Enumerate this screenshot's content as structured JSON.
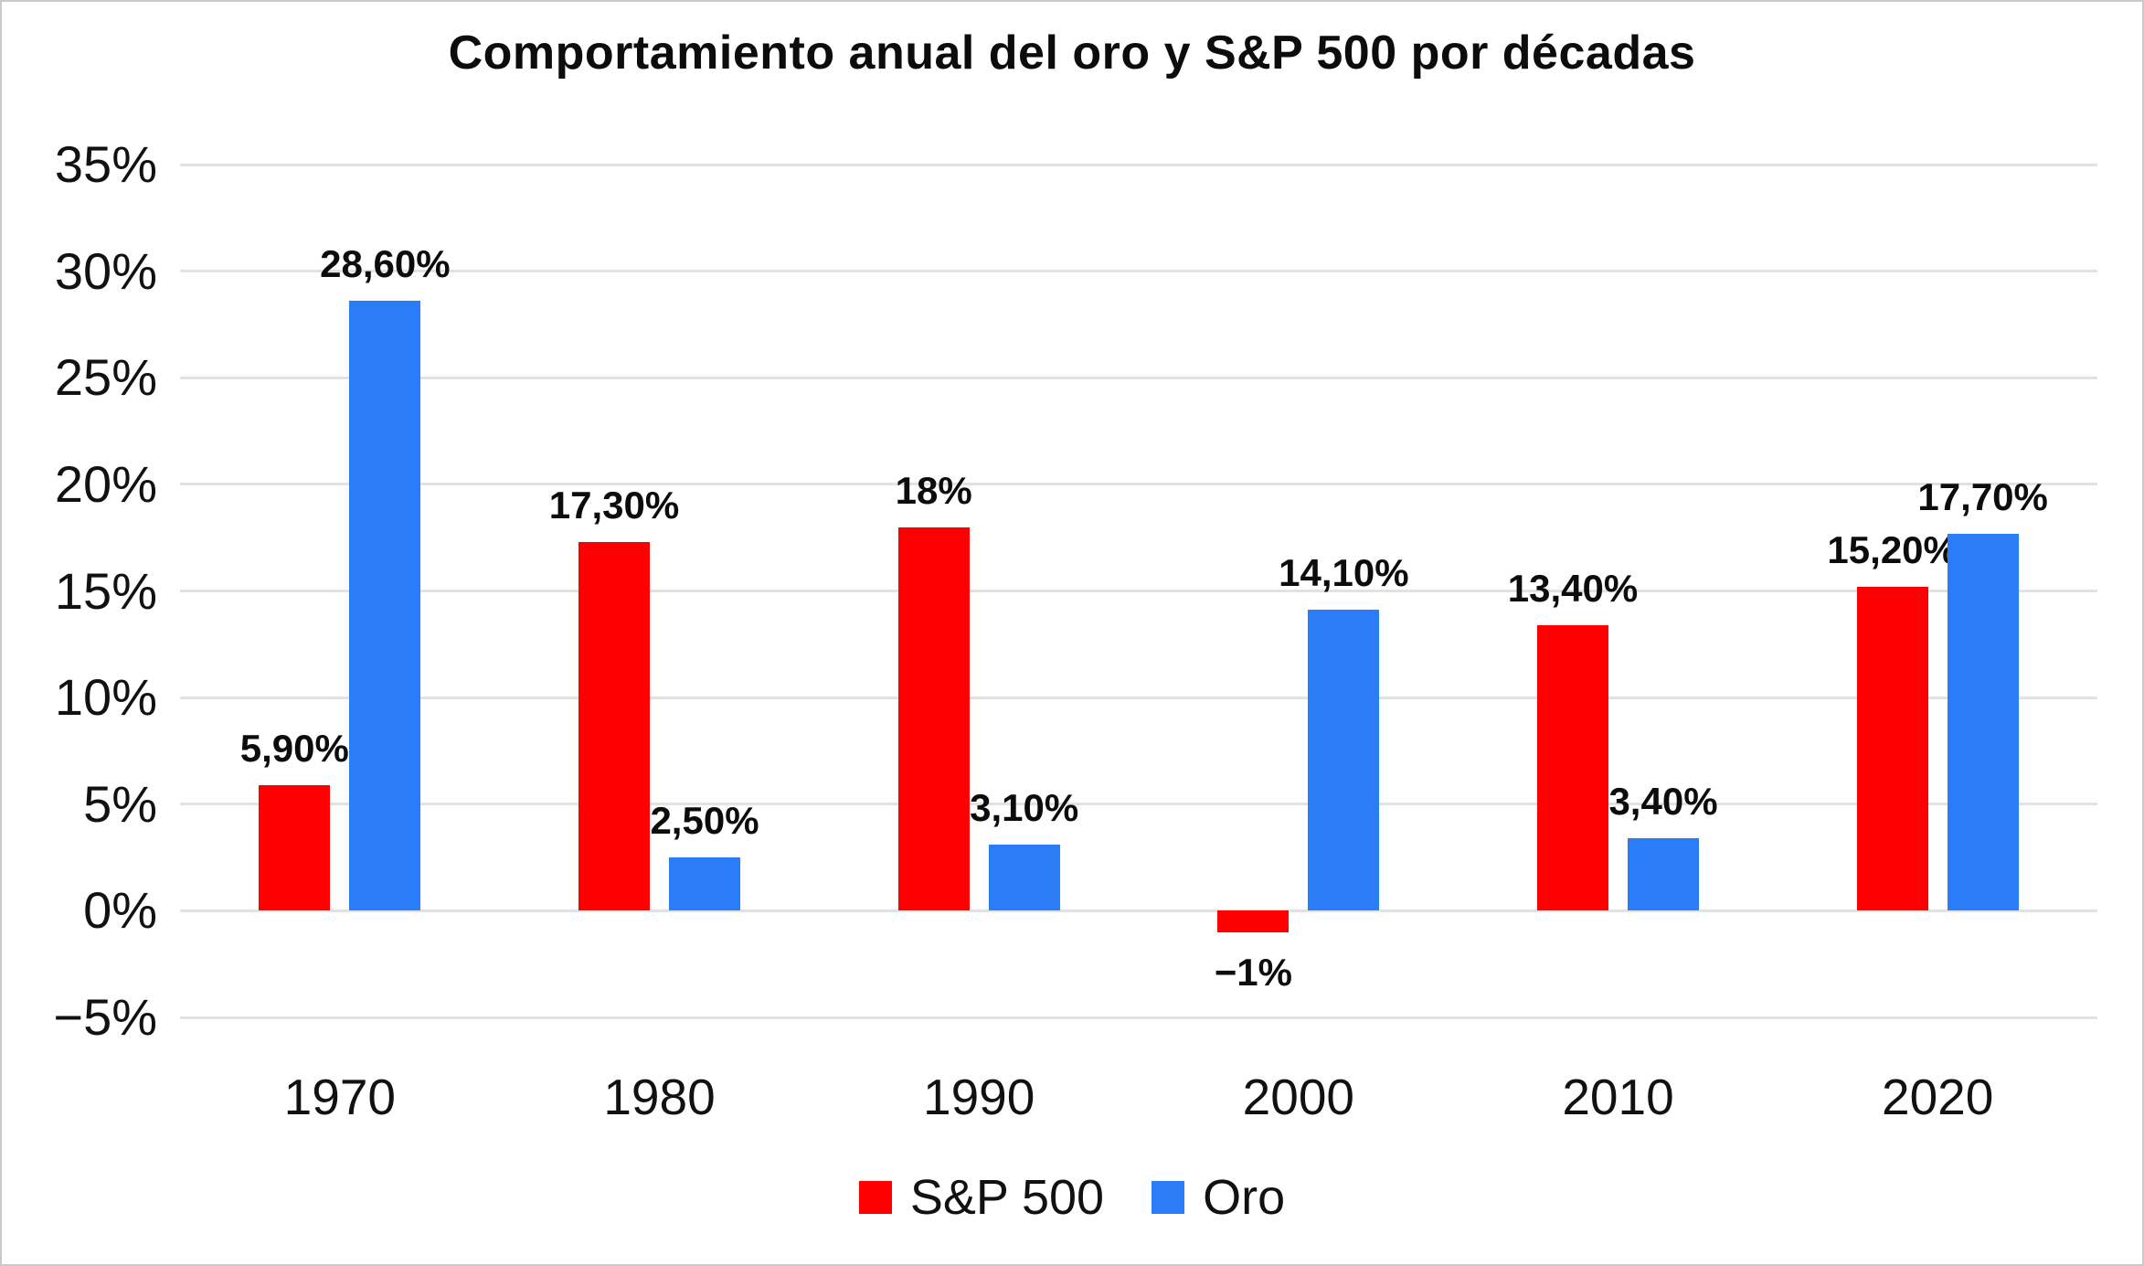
{
  "title": "Comportamiento anual del oro y S&P 500 por décadas",
  "colors": {
    "sp500": "#fe0000",
    "oro": "#2b7cf7",
    "gridline": "#e2e2e2",
    "text": "#111111",
    "frame_border": "#c9c9c9",
    "background": "#ffffff"
  },
  "chart_data": {
    "type": "bar",
    "title": "Comportamiento anual del oro y S&P 500 por décadas",
    "categories": [
      "1970",
      "1980",
      "1990",
      "2000",
      "2010",
      "2020"
    ],
    "series": [
      {
        "name": "S&P 500",
        "color": "#fe0000",
        "values": [
          5.9,
          17.3,
          18,
          -1,
          13.4,
          15.2
        ],
        "labels": [
          "5,90%",
          "17,30%",
          "18%",
          "−1%",
          "13,40%",
          "15,20%"
        ]
      },
      {
        "name": "Oro",
        "color": "#2b7cf7",
        "values": [
          28.6,
          2.5,
          3.1,
          14.1,
          3.4,
          17.7
        ],
        "labels": [
          "28,60%",
          "2,50%",
          "3,10%",
          "14,10%",
          "3,40%",
          "17,70%"
        ]
      }
    ],
    "xlabel": "",
    "ylabel": "",
    "ylim": [
      -5,
      35
    ],
    "yticks": [
      35,
      30,
      25,
      20,
      15,
      10,
      5,
      0,
      -5
    ],
    "ytick_labels": [
      "35%",
      "30%",
      "25%",
      "20%",
      "15%",
      "10%",
      "5%",
      "0%",
      "−5%"
    ],
    "grid": true,
    "legend_position": "bottom"
  },
  "legend": {
    "items": [
      {
        "label": "S&P 500",
        "color": "#fe0000"
      },
      {
        "label": "Oro",
        "color": "#2b7cf7"
      }
    ]
  }
}
